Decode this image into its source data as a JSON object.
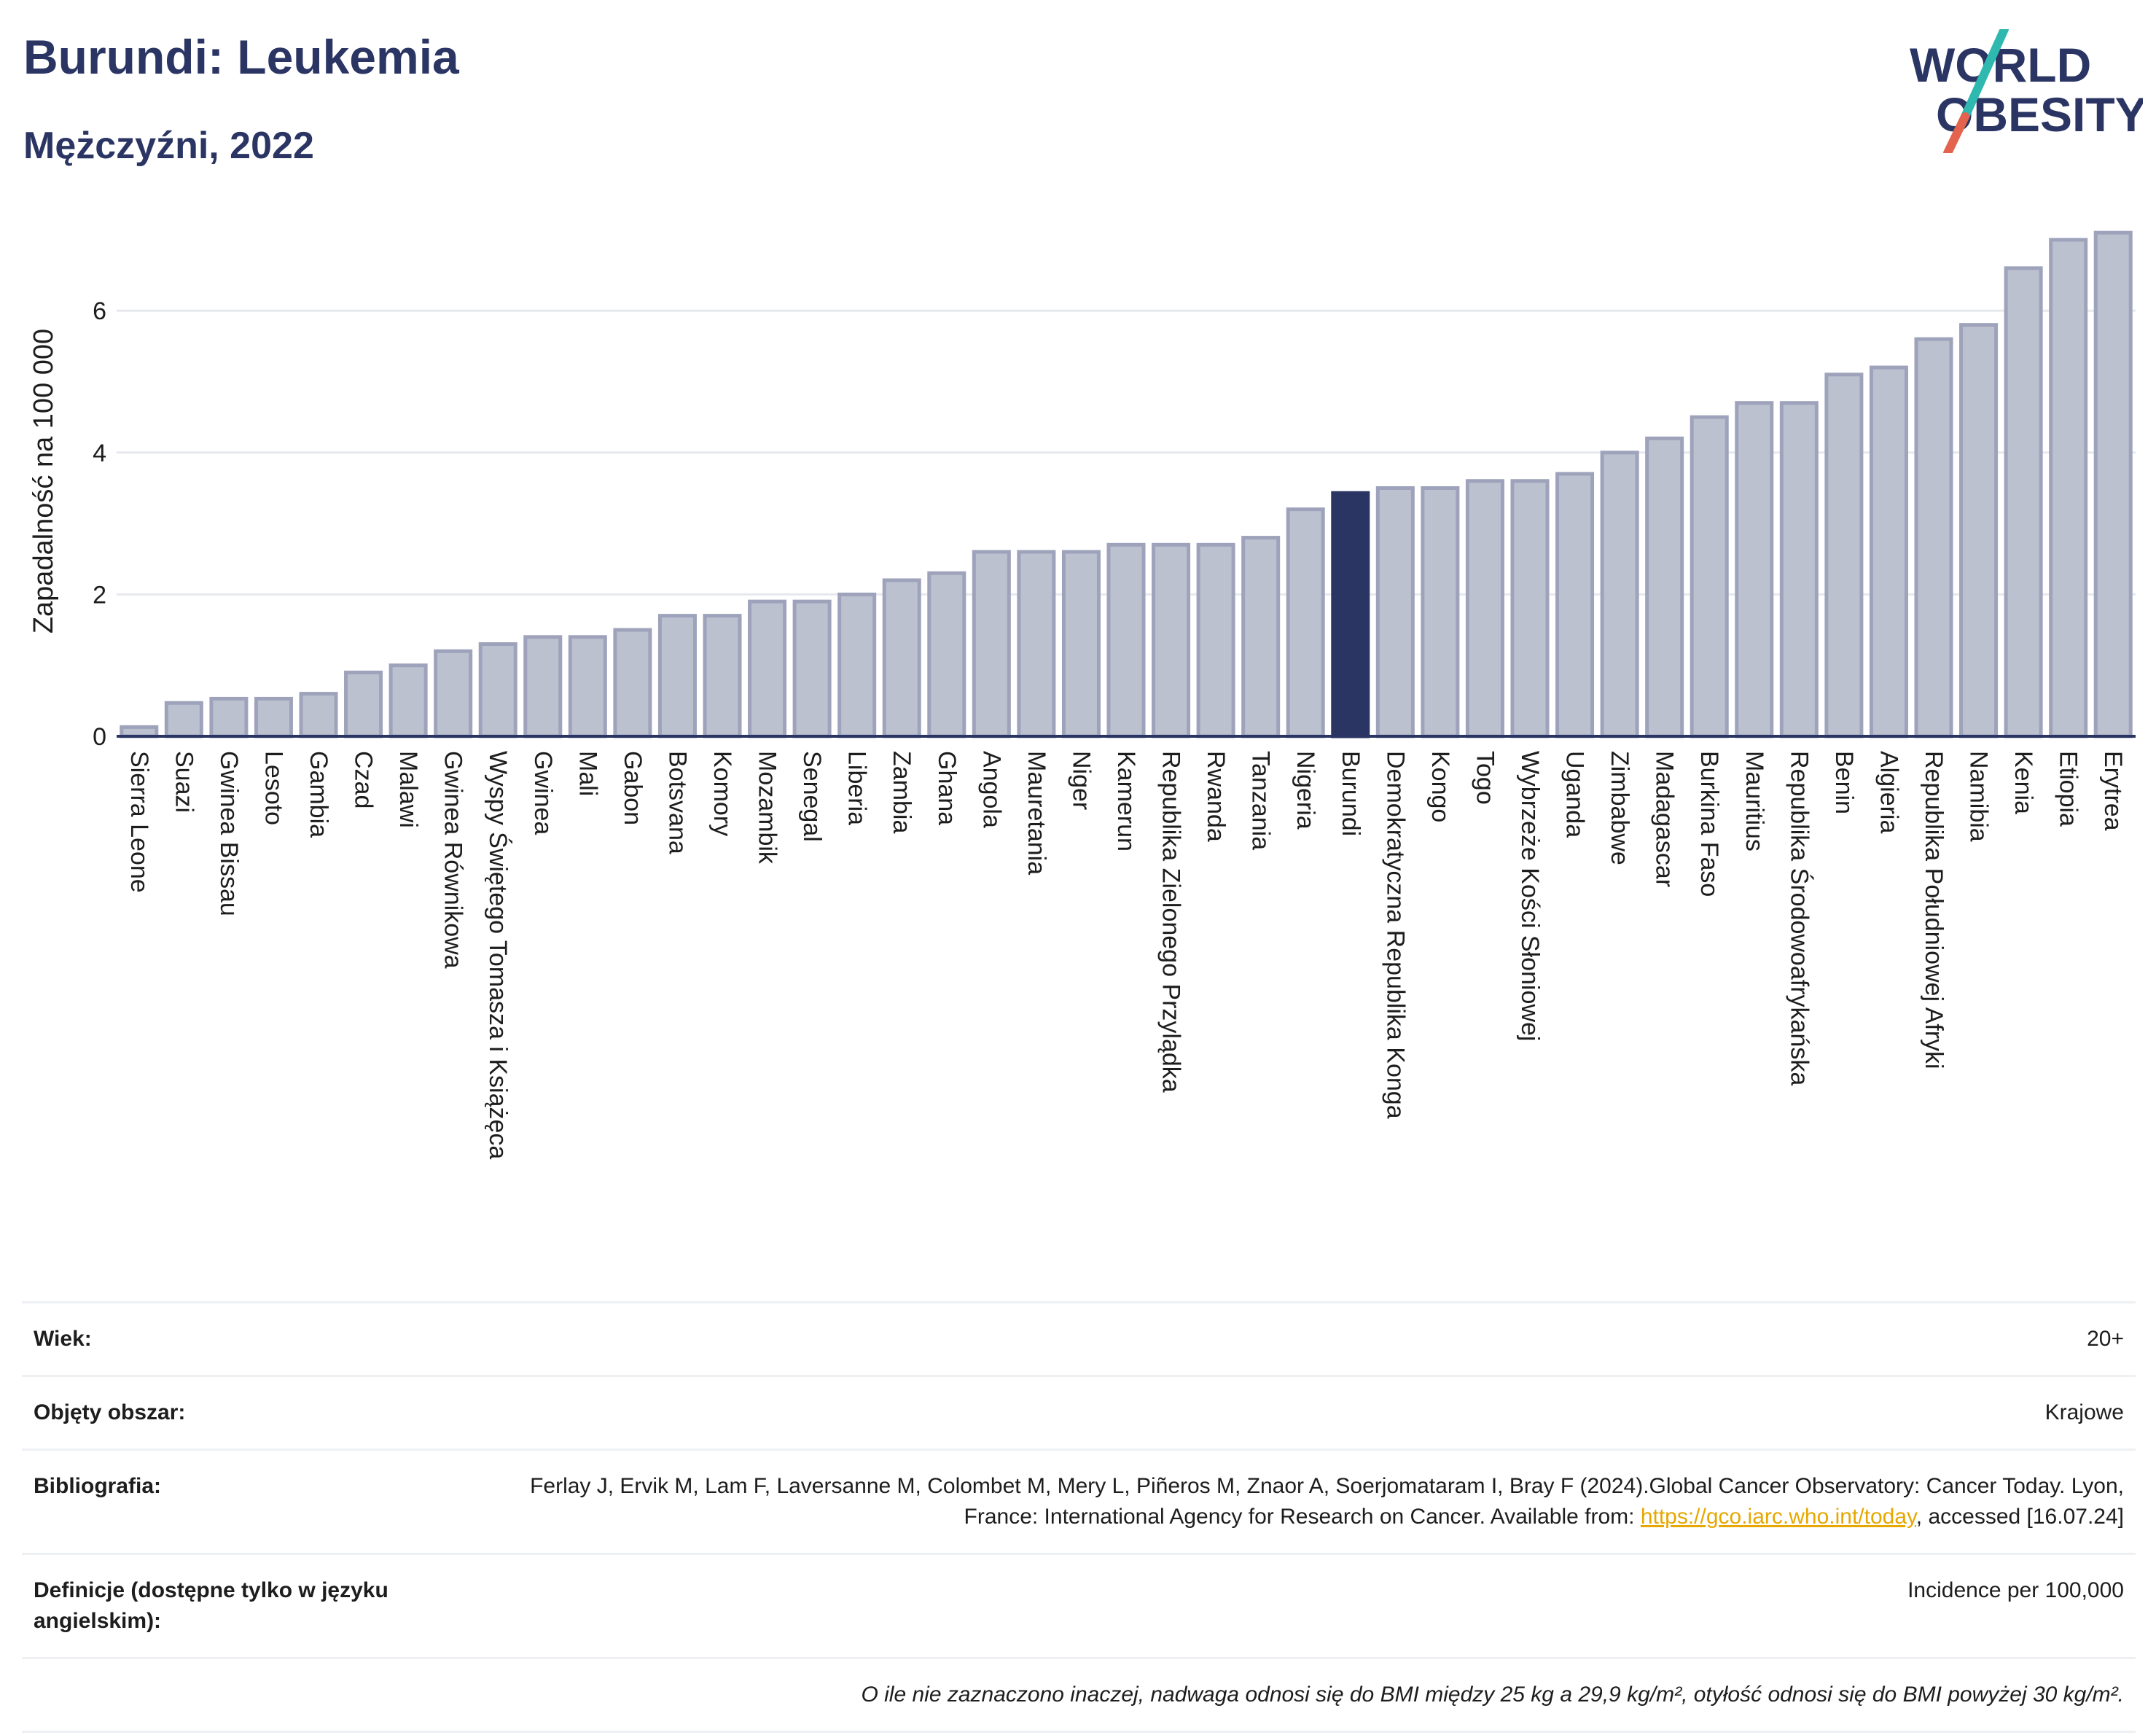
{
  "header": {
    "title": "Burundi: Leukemia",
    "subtitle": "Mężczyźni, 2022",
    "logo_text": "WORLD OBESITY"
  },
  "colors": {
    "bar_default": "#bcc1d0",
    "bar_border": "#9ea3bb",
    "bar_highlight": "#2b3563",
    "title": "#2b3563",
    "logo_teal": "#2fb8b0",
    "logo_red": "#e4634f",
    "link": "#e6a700"
  },
  "chart_data": {
    "type": "bar",
    "ylabel": "Zapadalność na 100 000",
    "ylim": [
      0,
      7.4
    ],
    "yticks": [
      0,
      2,
      4,
      6
    ],
    "grid": true,
    "highlight": "Burundi",
    "categories": [
      "Sierra Leone",
      "Suazi",
      "Gwinea Bissau",
      "Lesoto",
      "Gambia",
      "Czad",
      "Malawi",
      "Gwinea Równikowa",
      "Wyspy Świętego Tomasza i Książęca",
      "Gwinea",
      "Mali",
      "Gabon",
      "Botsvana",
      "Komory",
      "Mozambik",
      "Senegal",
      "Liberia",
      "Zambia",
      "Ghana",
      "Angola",
      "Mauretania",
      "Niger",
      "Kamerun",
      "Republika Zielonego Przylądka",
      "Rwanda",
      "Tanzania",
      "Nigeria",
      "Burundi",
      "Demokratyczna Republika Konga",
      "Kongo",
      "Togo",
      "Wybrzeże Kości Słoniowej",
      "Uganda",
      "Zimbabwe",
      "Madagascar",
      "Burkina Faso",
      "Mauritius",
      "Republika Środowoafrykańska",
      "Benin",
      "Algieria",
      "Republika Południowej Afryki",
      "Namibia",
      "Kenia",
      "Etiopia",
      "Erytrea"
    ],
    "values": [
      0.13,
      0.47,
      0.53,
      0.53,
      0.6,
      0.9,
      1.0,
      1.2,
      1.3,
      1.4,
      1.4,
      1.5,
      1.7,
      1.7,
      1.9,
      1.9,
      2.0,
      2.2,
      2.3,
      2.6,
      2.6,
      2.6,
      2.7,
      2.7,
      2.7,
      2.8,
      3.2,
      3.43,
      3.5,
      3.5,
      3.6,
      3.6,
      3.7,
      4.0,
      4.2,
      4.5,
      4.7,
      4.7,
      5.1,
      5.2,
      5.6,
      5.8,
      6.6,
      7.0,
      7.1
    ]
  },
  "meta": {
    "age_label": "Wiek:",
    "age_value": "20+",
    "coverage_label": "Objęty obszar:",
    "coverage_value": "Krajowe",
    "bibliography_label": "Bibliografia:",
    "bibliography_text": "Ferlay J, Ervik M, Lam F, Laversanne M, Colombet M, Mery L, Piñeros M, Znaor A, Soerjomataram I, Bray F (2024).Global Cancer Observatory: Cancer Today. Lyon, France: International Agency for Research on Cancer. Available from: ",
    "bibliography_link": "https://gco.iarc.who.int/today",
    "bibliography_suffix": ", accessed [16.07.24]",
    "definitions_label": "Definicje (dostępne tylko w języku angielskim):",
    "definitions_value": "Incidence per 100,000",
    "note": "O ile nie zaznaczono inaczej, nadwaga odnosi się do BMI między 25 kg a 29,9 kg/m², otyłość odnosi się do BMI powyżej 30 kg/m²."
  }
}
